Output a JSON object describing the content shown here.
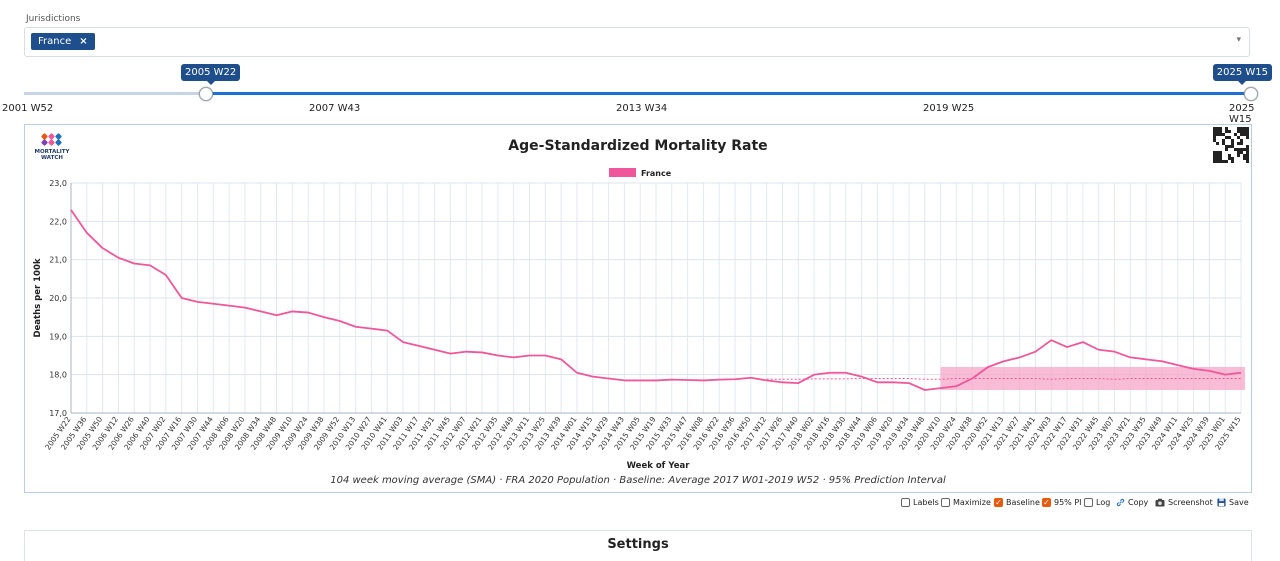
{
  "jurisdictions": {
    "label": "Jurisdictions",
    "selected": [
      {
        "name": "France",
        "remove": "×"
      }
    ],
    "caret": "▾"
  },
  "slider": {
    "start_label": "2005 W22",
    "end_label": "2025 W15",
    "ticks": [
      "2001 W52",
      "2007 W43",
      "2013 W34",
      "2019 W25",
      "2025 W15"
    ]
  },
  "chart_data": {
    "type": "line",
    "title": "Age-Standardized Mortality Rate",
    "logo_text": [
      "MORTALITY",
      "WATCH"
    ],
    "xlabel": "Week of Year",
    "ylabel": "Deaths per 100k",
    "ylim": [
      17.0,
      23.0
    ],
    "yticks": [
      "17,0",
      "18,0",
      "19,0",
      "20,0",
      "21,0",
      "22,0",
      "23,0"
    ],
    "ytick_values": [
      17,
      18,
      19,
      20,
      21,
      22,
      23
    ],
    "legend_position": "top-center",
    "grid": true,
    "caption": "104 week moving average (SMA) · FRA 2020 Population · Baseline: Average 2017 W01-2019 W52 · 95% Prediction Interval",
    "x_categories": [
      "2005 W22",
      "2005 W36",
      "2005 W50",
      "2006 W12",
      "2006 W26",
      "2006 W40",
      "2007 W02",
      "2007 W16",
      "2007 W30",
      "2007 W44",
      "2008 W06",
      "2008 W20",
      "2008 W34",
      "2008 W48",
      "2009 W10",
      "2009 W24",
      "2009 W38",
      "2009 W52",
      "2010 W13",
      "2010 W27",
      "2010 W41",
      "2011 W03",
      "2011 W17",
      "2011 W31",
      "2011 W45",
      "2012 W07",
      "2012 W21",
      "2012 W35",
      "2012 W49",
      "2013 W11",
      "2013 W25",
      "2013 W39",
      "2014 W01",
      "2014 W15",
      "2014 W29",
      "2014 W43",
      "2015 W05",
      "2015 W19",
      "2015 W33",
      "2015 W47",
      "2016 W08",
      "2016 W22",
      "2016 W36",
      "2016 W50",
      "2017 W12",
      "2017 W26",
      "2017 W40",
      "2018 W02",
      "2018 W16",
      "2018 W30",
      "2018 W44",
      "2019 W06",
      "2019 W20",
      "2019 W34",
      "2019 W48",
      "2020 W10",
      "2020 W24",
      "2020 W38",
      "2020 W52",
      "2021 W13",
      "2021 W27",
      "2021 W41",
      "2022 W03",
      "2022 W17",
      "2022 W31",
      "2022 W45",
      "2023 W07",
      "2023 W21",
      "2023 W35",
      "2023 W49",
      "2024 W11",
      "2024 W25",
      "2024 W39",
      "2025 W01",
      "2025 W15"
    ],
    "series": [
      {
        "name": "France",
        "color": "#f0569a",
        "values": [
          22.3,
          21.7,
          21.3,
          21.05,
          20.9,
          20.85,
          20.6,
          20.0,
          19.9,
          19.85,
          19.8,
          19.75,
          19.65,
          19.55,
          19.65,
          19.62,
          19.5,
          19.4,
          19.25,
          19.2,
          19.15,
          18.85,
          18.75,
          18.65,
          18.55,
          18.6,
          18.58,
          18.5,
          18.45,
          18.5,
          18.5,
          18.4,
          18.05,
          17.95,
          17.9,
          17.85,
          17.85,
          17.85,
          17.87,
          17.86,
          17.85,
          17.87,
          17.88,
          17.92,
          17.85,
          17.8,
          17.78,
          18.0,
          18.05,
          18.05,
          17.95,
          17.8,
          17.8,
          17.78,
          17.6,
          17.65,
          17.7,
          17.9,
          18.2,
          18.35,
          18.45,
          18.6,
          18.9,
          18.72,
          18.85,
          18.65,
          18.6,
          18.45,
          18.4,
          18.35,
          18.25,
          18.15,
          18.1,
          18.0,
          18.05
        ]
      }
    ],
    "baseline": {
      "name": "Baseline",
      "color": "#f0569a",
      "values": [
        null,
        null,
        null,
        null,
        null,
        null,
        null,
        null,
        null,
        null,
        null,
        null,
        null,
        null,
        null,
        null,
        null,
        null,
        null,
        null,
        null,
        null,
        null,
        null,
        null,
        null,
        null,
        null,
        null,
        null,
        null,
        null,
        null,
        null,
        null,
        null,
        null,
        null,
        null,
        null,
        null,
        null,
        null,
        null,
        17.88,
        17.88,
        17.88,
        17.89,
        17.89,
        17.89,
        17.9,
        17.9,
        17.9,
        17.9,
        17.88,
        17.88,
        17.9,
        17.9,
        17.9,
        17.9,
        17.9,
        17.9,
        17.88,
        17.9,
        17.9,
        17.9,
        17.88,
        17.9,
        17.9,
        17.9,
        17.9,
        17.9,
        17.9,
        17.9,
        17.9
      ]
    },
    "prediction_interval": {
      "name": "95% PI",
      "color": "#f7a6c8",
      "start_index": 55,
      "lower": 17.6,
      "upper": 18.2
    }
  },
  "options": {
    "labels": {
      "label": "Labels",
      "checked": false
    },
    "maximize": {
      "label": "Maximize",
      "checked": false
    },
    "baseline": {
      "label": "Baseline",
      "checked": true
    },
    "pi": {
      "label": "95% PI",
      "checked": true
    },
    "log": {
      "label": "Log",
      "checked": false
    },
    "copy": {
      "label": "Copy",
      "icon": "link-icon"
    },
    "screenshot": {
      "label": "Screenshot",
      "icon": "camera-icon"
    },
    "save": {
      "label": "Save",
      "icon": "floppy-icon"
    }
  },
  "settings": {
    "title": "Settings"
  }
}
